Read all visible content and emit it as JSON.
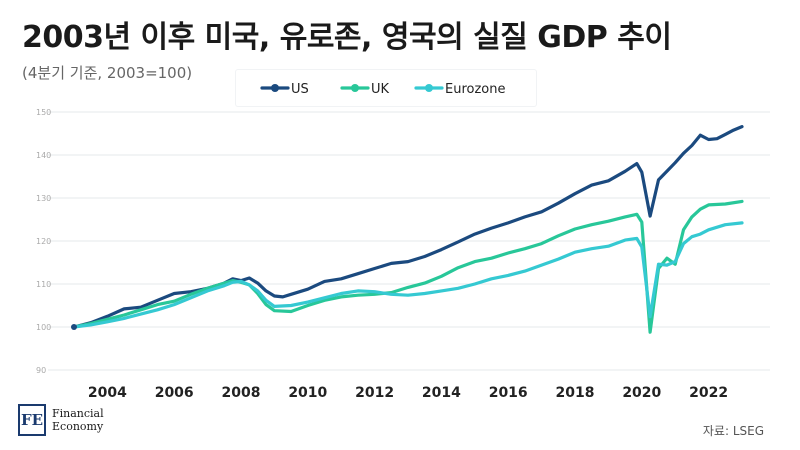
{
  "title": "2003년 이후 미국, 유로존, 영국의 실질 GDP 추이",
  "subtitle": "(4분기 기준, 2003=100)",
  "source": "자료: LSEG",
  "logo": {
    "mark": "FE",
    "line1": "Financial",
    "line2": "Economy"
  },
  "colors": {
    "US": "#1b4a7f",
    "UK": "#28c799",
    "Eurozone": "#35c9d2",
    "grid": "#e5e8eb",
    "tick": "#aaaaaa"
  },
  "chart_data": {
    "type": "line",
    "title": "2003년 이후 미국, 유로존, 영국의 실질 GDP 추이",
    "subtitle": "(4분기 기준, 2003=100)",
    "xlabel": "",
    "ylabel": "",
    "xlim": [
      2003.0,
      2023.0
    ],
    "ylim": [
      90,
      150
    ],
    "xticks": [
      2004,
      2006,
      2008,
      2010,
      2012,
      2014,
      2016,
      2018,
      2020,
      2022
    ],
    "yticks": [
      90,
      100,
      110,
      120,
      130,
      140,
      150
    ],
    "grid": true,
    "legend_position": "top",
    "series": [
      {
        "name": "US",
        "points": [
          [
            2003.0,
            100
          ],
          [
            2003.5,
            101
          ],
          [
            2004.0,
            102.5
          ],
          [
            2004.5,
            104.2
          ],
          [
            2005.0,
            104.6
          ],
          [
            2005.5,
            106.2
          ],
          [
            2006.0,
            107.8
          ],
          [
            2006.5,
            108.2
          ],
          [
            2007.0,
            109.0
          ],
          [
            2007.5,
            110.2
          ],
          [
            2007.75,
            111.2
          ],
          [
            2008.0,
            110.8
          ],
          [
            2008.25,
            111.4
          ],
          [
            2008.5,
            110.2
          ],
          [
            2008.75,
            108.4
          ],
          [
            2009.0,
            107.2
          ],
          [
            2009.25,
            107.0
          ],
          [
            2009.5,
            107.6
          ],
          [
            2010.0,
            108.8
          ],
          [
            2010.5,
            110.6
          ],
          [
            2011.0,
            111.2
          ],
          [
            2011.5,
            112.4
          ],
          [
            2012.0,
            113.6
          ],
          [
            2012.5,
            114.8
          ],
          [
            2013.0,
            115.2
          ],
          [
            2013.5,
            116.4
          ],
          [
            2014.0,
            118.0
          ],
          [
            2014.5,
            119.8
          ],
          [
            2015.0,
            121.6
          ],
          [
            2015.5,
            123.0
          ],
          [
            2016.0,
            124.2
          ],
          [
            2016.5,
            125.6
          ],
          [
            2017.0,
            126.8
          ],
          [
            2017.5,
            128.8
          ],
          [
            2018.0,
            131.0
          ],
          [
            2018.5,
            133.0
          ],
          [
            2019.0,
            134.0
          ],
          [
            2019.5,
            136.2
          ],
          [
            2019.85,
            138.0
          ],
          [
            2020.0,
            136.0
          ],
          [
            2020.25,
            125.8
          ],
          [
            2020.5,
            134.2
          ],
          [
            2020.75,
            136.2
          ],
          [
            2021.0,
            138.2
          ],
          [
            2021.25,
            140.4
          ],
          [
            2021.5,
            142.2
          ],
          [
            2021.75,
            144.6
          ],
          [
            2022.0,
            143.6
          ],
          [
            2022.25,
            143.8
          ],
          [
            2022.5,
            144.8
          ],
          [
            2022.75,
            145.8
          ],
          [
            2023.0,
            146.6
          ]
        ]
      },
      {
        "name": "UK",
        "points": [
          [
            2003.0,
            100
          ],
          [
            2003.5,
            100.8
          ],
          [
            2004.0,
            101.8
          ],
          [
            2004.5,
            102.8
          ],
          [
            2005.0,
            104.0
          ],
          [
            2005.5,
            105.2
          ],
          [
            2006.0,
            106.0
          ],
          [
            2006.5,
            107.6
          ],
          [
            2007.0,
            109.0
          ],
          [
            2007.5,
            110.2
          ],
          [
            2007.75,
            110.8
          ],
          [
            2008.0,
            110.4
          ],
          [
            2008.25,
            109.8
          ],
          [
            2008.5,
            107.8
          ],
          [
            2008.75,
            105.2
          ],
          [
            2009.0,
            103.8
          ],
          [
            2009.5,
            103.6
          ],
          [
            2010.0,
            105.0
          ],
          [
            2010.5,
            106.2
          ],
          [
            2011.0,
            107.0
          ],
          [
            2011.5,
            107.4
          ],
          [
            2012.0,
            107.6
          ],
          [
            2012.5,
            108.0
          ],
          [
            2013.0,
            109.2
          ],
          [
            2013.5,
            110.2
          ],
          [
            2014.0,
            111.8
          ],
          [
            2014.5,
            113.8
          ],
          [
            2015.0,
            115.2
          ],
          [
            2015.5,
            116.0
          ],
          [
            2016.0,
            117.2
          ],
          [
            2016.5,
            118.2
          ],
          [
            2017.0,
            119.4
          ],
          [
            2017.5,
            121.2
          ],
          [
            2018.0,
            122.8
          ],
          [
            2018.5,
            123.8
          ],
          [
            2019.0,
            124.6
          ],
          [
            2019.5,
            125.6
          ],
          [
            2019.85,
            126.2
          ],
          [
            2020.0,
            124.4
          ],
          [
            2020.25,
            98.8
          ],
          [
            2020.5,
            113.6
          ],
          [
            2020.75,
            116.0
          ],
          [
            2021.0,
            114.6
          ],
          [
            2021.25,
            122.6
          ],
          [
            2021.5,
            125.6
          ],
          [
            2021.75,
            127.4
          ],
          [
            2022.0,
            128.4
          ],
          [
            2022.5,
            128.6
          ],
          [
            2023.0,
            129.2
          ]
        ]
      },
      {
        "name": "Eurozone",
        "points": [
          [
            2003.0,
            100
          ],
          [
            2003.5,
            100.5
          ],
          [
            2004.0,
            101.2
          ],
          [
            2004.5,
            102.0
          ],
          [
            2005.0,
            103.0
          ],
          [
            2005.5,
            104.0
          ],
          [
            2006.0,
            105.2
          ],
          [
            2006.5,
            106.8
          ],
          [
            2007.0,
            108.4
          ],
          [
            2007.5,
            109.6
          ],
          [
            2007.75,
            110.4
          ],
          [
            2008.0,
            110.6
          ],
          [
            2008.25,
            109.8
          ],
          [
            2008.5,
            108.4
          ],
          [
            2008.75,
            106.2
          ],
          [
            2009.0,
            104.8
          ],
          [
            2009.5,
            105.0
          ],
          [
            2010.0,
            105.8
          ],
          [
            2010.5,
            106.8
          ],
          [
            2011.0,
            107.8
          ],
          [
            2011.5,
            108.4
          ],
          [
            2012.0,
            108.2
          ],
          [
            2012.5,
            107.6
          ],
          [
            2013.0,
            107.4
          ],
          [
            2013.5,
            107.8
          ],
          [
            2014.0,
            108.4
          ],
          [
            2014.5,
            109.0
          ],
          [
            2015.0,
            110.0
          ],
          [
            2015.5,
            111.2
          ],
          [
            2016.0,
            112.0
          ],
          [
            2016.5,
            113.0
          ],
          [
            2017.0,
            114.4
          ],
          [
            2017.5,
            115.8
          ],
          [
            2018.0,
            117.4
          ],
          [
            2018.5,
            118.2
          ],
          [
            2019.0,
            118.8
          ],
          [
            2019.5,
            120.2
          ],
          [
            2019.85,
            120.6
          ],
          [
            2020.0,
            118.6
          ],
          [
            2020.25,
            102.4
          ],
          [
            2020.5,
            114.6
          ],
          [
            2020.75,
            114.4
          ],
          [
            2021.0,
            115.2
          ],
          [
            2021.25,
            119.4
          ],
          [
            2021.5,
            121.0
          ],
          [
            2021.75,
            121.6
          ],
          [
            2022.0,
            122.6
          ],
          [
            2022.5,
            123.8
          ],
          [
            2023.0,
            124.2
          ]
        ]
      }
    ]
  }
}
